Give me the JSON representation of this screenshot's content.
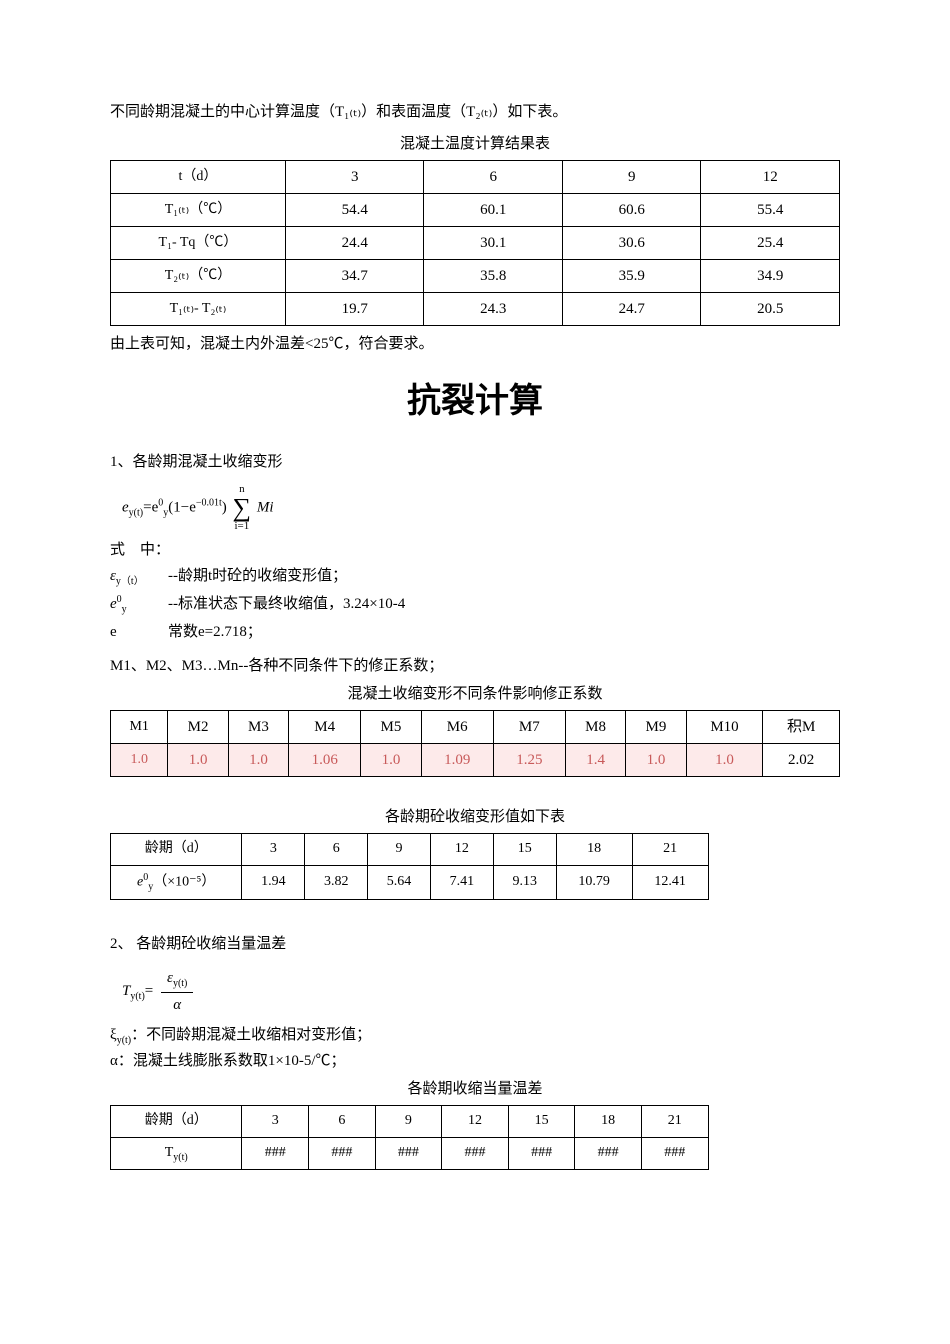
{
  "intro": "不同龄期混凝土的中心计算温度（T₁₍ₜ₎）和表面温度（T₂₍ₜ₎）如下表。",
  "table1": {
    "title": "混凝土温度计算结果表",
    "rows": [
      {
        "label": "t（d）",
        "c1": "3",
        "c2": "6",
        "c3": "9",
        "c4": "12"
      },
      {
        "label": "T₁₍ₜ₎（℃）",
        "c1": "54.4",
        "c2": "60.1",
        "c3": "60.6",
        "c4": "55.4"
      },
      {
        "label": "T₁- Tq（℃）",
        "c1": "24.4",
        "c2": "30.1",
        "c3": "30.6",
        "c4": "25.4"
      },
      {
        "label": "T₂₍ₜ₎（℃）",
        "c1": "34.7",
        "c2": "35.8",
        "c3": "35.9",
        "c4": "34.9"
      },
      {
        "label": "T₁₍ₜ₎- T₂₍ₜ₎",
        "c1": "19.7",
        "c2": "24.3",
        "c3": "24.7",
        "c4": "20.5"
      }
    ]
  },
  "note1": "由上表可知，混凝土内外温差<25℃，符合要求。",
  "bigTitle": "抗裂计算",
  "section1": {
    "title": "1、各龄期混凝土收缩变形",
    "formula_lhs": "e",
    "formula_sub_lhs": "y(t)",
    "formula_eq": "=e",
    "formula_sub2": "y",
    "formula_sup": "0",
    "formula_paren": "(1−e",
    "formula_exp": "−0.01t",
    "formula_close": ")",
    "sum_top": "n",
    "sum_bot": "i=1",
    "formula_after": "Mi",
    "formula_label": "式　中：",
    "defs": [
      {
        "sym": "ε",
        "sub": "y（t）",
        "txt": "--龄期t时砼的收缩变形值；"
      },
      {
        "sym": "e",
        "sub": "y",
        "sup": "0",
        "txt": "--标准状态下最终收缩值，3.24×10-4"
      },
      {
        "sym": "e",
        "txt": "常数e=2.718；"
      }
    ],
    "m_note": "M1、M2、M3…Mn--各种不同条件下的修正系数；"
  },
  "table2": {
    "title": "混凝土收缩变形不同条件影响修正系数",
    "header": [
      "M1",
      "M2",
      "M3",
      "M4",
      "M5",
      "M6",
      "M7",
      "M8",
      "M9",
      "M10",
      "积M"
    ],
    "row": [
      "1.0",
      "1.0",
      "1.0",
      "1.06",
      "1.0",
      "1.09",
      "1.25",
      "1.4",
      "1.0",
      "1.0",
      "2.02"
    ]
  },
  "table3": {
    "title": "各龄期砼收缩变形值如下表",
    "header_label": "龄期（d）",
    "header": [
      "3",
      "6",
      "9",
      "12",
      "15",
      "18",
      "21"
    ],
    "row_label_sym": "e",
    "row_label_sup": "0",
    "row_label_sub": "y",
    "row_label_unit": "（×10⁻⁵）",
    "row": [
      "1.94",
      "3.82",
      "5.64",
      "7.41",
      "9.13",
      "10.79",
      "12.41"
    ]
  },
  "section2": {
    "title": "2、 各龄期砼收缩当量温差",
    "formula_T": "T",
    "formula_T_sub": "y(t)",
    "frac_num_sym": "ε",
    "frac_num_sub": "y(t)",
    "frac_den": "α",
    "xi_label": "ξ",
    "xi_sub": "y(t)",
    "xi_txt": "：不同龄期混凝土收缩相对变形值；",
    "alpha_label": "α",
    "alpha_txt": "：混凝土线膨胀系数取1×10-5/℃；"
  },
  "table4": {
    "title": "各龄期收缩当量温差",
    "header_label": "龄期（d）",
    "header": [
      "3",
      "6",
      "9",
      "12",
      "15",
      "18",
      "21"
    ],
    "row_label": "Ty(t)",
    "row": [
      "###",
      "###",
      "###",
      "###",
      "###",
      "###",
      "###"
    ]
  }
}
